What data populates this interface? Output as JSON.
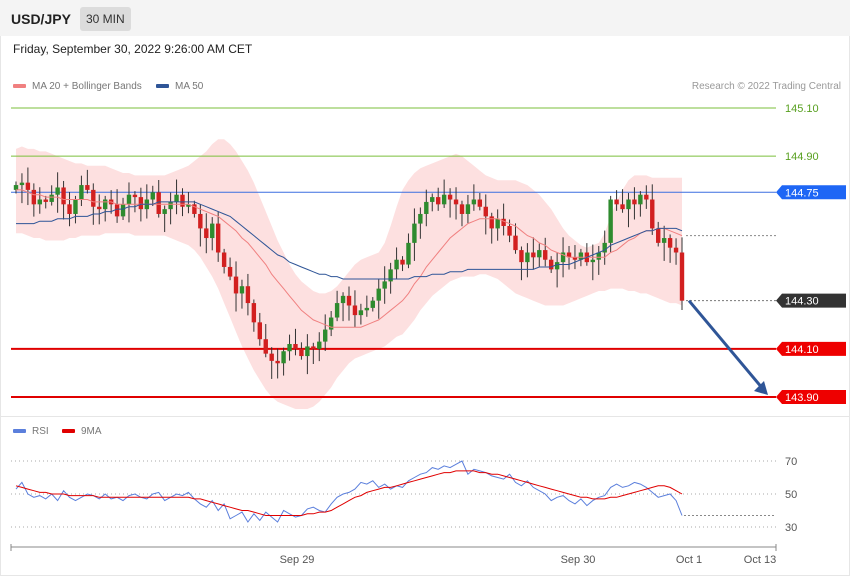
{
  "header": {
    "symbol": "USD/JPY",
    "timeframe": "30 MIN"
  },
  "date_text": "Friday, September 30, 2022 9:26:00 AM CET",
  "legend": {
    "ma20": {
      "label": "MA 20 + Bollinger Bands",
      "color": "#f08080"
    },
    "ma50": {
      "label": "MA 50",
      "color": "#2f5597"
    },
    "rsi": {
      "label": "RSI",
      "color": "#5b7fdc"
    },
    "ma9": {
      "label": "9MA",
      "color": "#e00000"
    }
  },
  "credit": "Research © 2022 Trading Central",
  "colors": {
    "up": "#2e8b2e",
    "down": "#d22020",
    "band": "#fde0e0",
    "ma20": "#f08080",
    "ma50": "#2f5597",
    "red_level": "#e00000",
    "green_level": "#7bbf3b",
    "arrow": "#2f5597"
  },
  "chart_data": [
    {
      "type": "candlestick",
      "title": "USD/JPY 30 MIN",
      "y_range": [
        143.82,
        145.22
      ],
      "x_labels": [
        "Sep 29",
        "Sep 30",
        "Oct 1",
        "Oct 13"
      ],
      "levels": [
        {
          "value": 145.1,
          "label": "145.10",
          "style": "green-line"
        },
        {
          "value": 144.9,
          "label": "144.90",
          "style": "green-line"
        },
        {
          "value": 144.75,
          "label": "144.75",
          "style": "blue-tag"
        },
        {
          "value": 144.3,
          "label": "144.30",
          "style": "current-tag"
        },
        {
          "value": 144.1,
          "label": "144.10",
          "style": "red-tag"
        },
        {
          "value": 143.9,
          "label": "143.90",
          "style": "red-tag"
        }
      ],
      "close_series": [
        144.78,
        144.79,
        144.76,
        144.7,
        144.72,
        144.71,
        144.74,
        144.77,
        144.7,
        144.66,
        144.72,
        144.78,
        144.76,
        144.69,
        144.68,
        144.72,
        144.7,
        144.65,
        144.7,
        144.74,
        144.73,
        144.68,
        144.72,
        144.75,
        144.66,
        144.68,
        144.71,
        144.74,
        144.69,
        144.7,
        144.66,
        144.6,
        144.56,
        144.62,
        144.5,
        144.44,
        144.4,
        144.33,
        144.36,
        144.29,
        144.21,
        144.14,
        144.08,
        144.05,
        144.04,
        144.09,
        144.12,
        144.1,
        144.07,
        144.11,
        144.1,
        144.13,
        144.18,
        144.23,
        144.29,
        144.32,
        144.28,
        144.24,
        144.26,
        144.27,
        144.3,
        144.35,
        144.38,
        144.43,
        144.47,
        144.45,
        144.54,
        144.62,
        144.66,
        144.71,
        144.73,
        144.7,
        144.74,
        144.72,
        144.7,
        144.66,
        144.7,
        144.72,
        144.69,
        144.65,
        144.6,
        144.64,
        144.61,
        144.57,
        144.51,
        144.46,
        144.5,
        144.48,
        144.51,
        144.47,
        144.43,
        144.46,
        144.5,
        144.48,
        144.47,
        144.5,
        144.46,
        144.47,
        144.5,
        144.54,
        144.72,
        144.7,
        144.68,
        144.72,
        144.7,
        144.74,
        144.72,
        144.6,
        144.54,
        144.56,
        144.52,
        144.5,
        144.3
      ],
      "ma20": [
        144.76,
        144.76,
        144.75,
        144.74,
        144.74,
        144.73,
        144.73,
        144.73,
        144.72,
        144.72,
        144.72,
        144.72,
        144.72,
        144.71,
        144.71,
        144.71,
        144.71,
        144.7,
        144.7,
        144.7,
        144.7,
        144.7,
        144.7,
        144.7,
        144.7,
        144.7,
        144.7,
        144.7,
        144.7,
        144.7,
        144.69,
        144.68,
        144.67,
        144.66,
        144.65,
        144.63,
        144.61,
        144.59,
        144.56,
        144.54,
        144.51,
        144.48,
        144.45,
        144.41,
        144.38,
        144.35,
        144.32,
        144.29,
        144.26,
        144.24,
        144.22,
        144.21,
        144.2,
        144.19,
        144.19,
        144.19,
        144.19,
        144.19,
        144.19,
        144.2,
        144.21,
        144.22,
        144.24,
        144.26,
        144.28,
        144.3,
        144.33,
        144.37,
        144.4,
        144.44,
        144.47,
        144.5,
        144.53,
        144.56,
        144.58,
        144.6,
        144.62,
        144.63,
        144.64,
        144.64,
        144.64,
        144.64,
        144.63,
        144.62,
        144.61,
        144.59,
        144.57,
        144.56,
        144.54,
        144.53,
        144.51,
        144.5,
        144.49,
        144.48,
        144.48,
        144.48,
        144.48,
        144.48,
        144.48,
        144.48,
        144.5,
        144.51,
        144.53,
        144.55,
        144.56,
        144.58,
        144.59,
        144.59,
        144.6,
        144.6,
        144.59,
        144.58,
        144.57
      ],
      "ma50": [
        144.62,
        144.62,
        144.62,
        144.62,
        144.63,
        144.63,
        144.63,
        144.64,
        144.64,
        144.64,
        144.65,
        144.65,
        144.65,
        144.66,
        144.66,
        144.67,
        144.67,
        144.68,
        144.68,
        144.69,
        144.69,
        144.7,
        144.7,
        144.7,
        144.71,
        144.71,
        144.71,
        144.71,
        144.71,
        144.71,
        144.71,
        144.7,
        144.69,
        144.68,
        144.67,
        144.66,
        144.65,
        144.63,
        144.61,
        144.59,
        144.57,
        144.55,
        144.53,
        144.51,
        144.49,
        144.48,
        144.46,
        144.45,
        144.44,
        144.43,
        144.42,
        144.41,
        144.41,
        144.4,
        144.4,
        144.39,
        144.39,
        144.39,
        144.39,
        144.39,
        144.39,
        144.39,
        144.39,
        144.39,
        144.39,
        144.39,
        144.39,
        144.4,
        144.4,
        144.4,
        144.41,
        144.41,
        144.41,
        144.42,
        144.42,
        144.42,
        144.43,
        144.43,
        144.43,
        144.43,
        144.43,
        144.43,
        144.43,
        144.43,
        144.43,
        144.43,
        144.43,
        144.43,
        144.44,
        144.44,
        144.44,
        144.45,
        144.45,
        144.45,
        144.46,
        144.47,
        144.48,
        144.49,
        144.5,
        144.51,
        144.53,
        144.54,
        144.55,
        144.56,
        144.57,
        144.58,
        144.59,
        144.59,
        144.6,
        144.6,
        144.6,
        144.6,
        144.59
      ],
      "bb_upper": [
        144.93,
        144.94,
        144.93,
        144.93,
        144.92,
        144.92,
        144.91,
        144.9,
        144.89,
        144.88,
        144.87,
        144.87,
        144.86,
        144.86,
        144.86,
        144.86,
        144.85,
        144.84,
        144.83,
        144.83,
        144.82,
        144.82,
        144.82,
        144.82,
        144.82,
        144.82,
        144.83,
        144.84,
        144.85,
        144.86,
        144.88,
        144.9,
        144.92,
        144.95,
        144.97,
        144.97,
        144.95,
        144.92,
        144.88,
        144.84,
        144.79,
        144.73,
        144.67,
        144.61,
        144.55,
        144.5,
        144.45,
        144.41,
        144.38,
        144.36,
        144.34,
        144.33,
        144.33,
        144.34,
        144.36,
        144.39,
        144.42,
        144.45,
        144.47,
        144.48,
        144.49,
        144.5,
        144.54,
        144.61,
        144.69,
        144.76,
        144.8,
        144.83,
        144.85,
        144.86,
        144.87,
        144.88,
        144.89,
        144.9,
        144.91,
        144.9,
        144.88,
        144.86,
        144.84,
        144.82,
        144.81,
        144.8,
        144.8,
        144.8,
        144.8,
        144.79,
        144.78,
        144.76,
        144.74,
        144.71,
        144.68,
        144.64,
        144.6,
        144.57,
        144.55,
        144.53,
        144.52,
        144.53,
        144.54,
        144.58,
        144.65,
        144.71,
        144.76,
        144.8,
        144.82,
        144.82,
        144.82,
        144.81,
        144.81,
        144.81,
        144.81,
        144.81,
        144.81
      ],
      "bb_lower": [
        144.58,
        144.58,
        144.57,
        144.56,
        144.56,
        144.55,
        144.55,
        144.55,
        144.55,
        144.56,
        144.56,
        144.57,
        144.57,
        144.57,
        144.57,
        144.58,
        144.58,
        144.58,
        144.58,
        144.58,
        144.57,
        144.57,
        144.57,
        144.57,
        144.57,
        144.57,
        144.56,
        144.55,
        144.54,
        144.53,
        144.51,
        144.48,
        144.44,
        144.4,
        144.35,
        144.29,
        144.23,
        144.17,
        144.11,
        144.06,
        144.01,
        143.97,
        143.93,
        143.9,
        143.88,
        143.87,
        143.86,
        143.85,
        143.85,
        143.85,
        143.86,
        143.88,
        143.91,
        143.94,
        143.98,
        144.01,
        144.04,
        144.06,
        144.07,
        144.08,
        144.09,
        144.1,
        144.11,
        144.13,
        144.15,
        144.16,
        144.19,
        144.22,
        144.26,
        144.29,
        144.32,
        144.34,
        144.36,
        144.38,
        144.39,
        144.4,
        144.4,
        144.4,
        144.41,
        144.41,
        144.4,
        144.39,
        144.37,
        144.35,
        144.33,
        144.32,
        144.31,
        144.3,
        144.29,
        144.28,
        144.28,
        144.28,
        144.28,
        144.29,
        144.3,
        144.31,
        144.32,
        144.33,
        144.34,
        144.34,
        144.35,
        144.35,
        144.35,
        144.34,
        144.34,
        144.33,
        144.33,
        144.32,
        144.31,
        144.3,
        144.29,
        144.29,
        144.28
      ],
      "projection": {
        "from_value": 144.3,
        "to_value": 143.9
      }
    },
    {
      "type": "line",
      "title": "RSI",
      "y_range": [
        25,
        75
      ],
      "y_ticks": [
        70,
        50,
        30
      ],
      "series": [
        {
          "name": "RSI",
          "values": [
            53,
            57,
            50,
            48,
            49,
            47,
            50,
            46,
            52,
            48,
            46,
            48,
            50,
            49,
            47,
            50,
            47,
            48,
            46,
            49,
            50,
            48,
            47,
            50,
            51,
            46,
            48,
            50,
            49,
            51,
            47,
            44,
            42,
            46,
            40,
            44,
            35,
            37,
            39,
            33,
            38,
            34,
            39,
            36,
            33,
            40,
            38,
            36,
            37,
            41,
            42,
            40,
            39,
            44,
            48,
            50,
            51,
            53,
            57,
            56,
            58,
            54,
            56,
            53,
            55,
            54,
            58,
            60,
            62,
            63,
            66,
            65,
            67,
            66,
            68,
            70,
            62,
            65,
            64,
            63,
            61,
            60,
            59,
            62,
            57,
            55,
            58,
            54,
            52,
            50,
            46,
            48,
            49,
            46,
            44,
            47,
            43,
            46,
            48,
            49,
            54,
            56,
            54,
            55,
            57,
            56,
            54,
            51,
            48,
            49,
            50,
            46,
            37
          ]
        },
        {
          "name": "9MA",
          "values": [
            55,
            54,
            53,
            52,
            51,
            51,
            50,
            50,
            50,
            49,
            49,
            49,
            49,
            49,
            48,
            48,
            48,
            48,
            48,
            48,
            48,
            48,
            48,
            48,
            48,
            48,
            48,
            48,
            48,
            48,
            47,
            47,
            46,
            45,
            44,
            43,
            42,
            41,
            40,
            40,
            39,
            38,
            37,
            37,
            37,
            37,
            37,
            37,
            37,
            38,
            38,
            39,
            39,
            40,
            42,
            44,
            46,
            48,
            49,
            51,
            52,
            53,
            54,
            54,
            55,
            56,
            57,
            58,
            59,
            60,
            61,
            62,
            63,
            63,
            64,
            64,
            64,
            64,
            63,
            63,
            62,
            62,
            61,
            60,
            59,
            58,
            57,
            56,
            55,
            54,
            53,
            52,
            51,
            50,
            49,
            48,
            48,
            47,
            47,
            47,
            48,
            48,
            49,
            50,
            51,
            52,
            53,
            54,
            55,
            55,
            54,
            52,
            50
          ]
        }
      ]
    }
  ]
}
